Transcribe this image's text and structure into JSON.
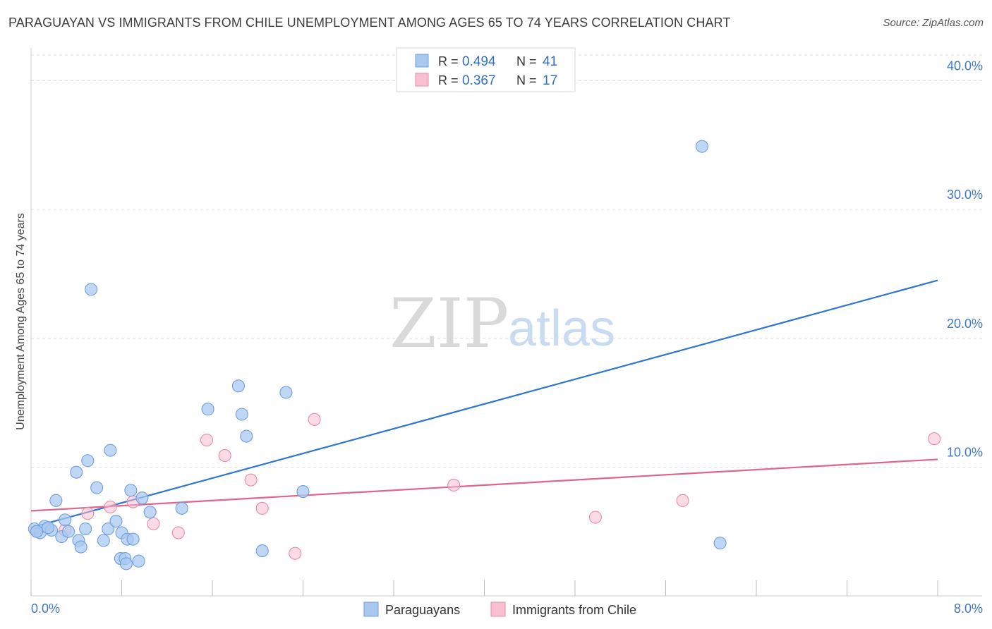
{
  "title": "PARAGUAYAN VS IMMIGRANTS FROM CHILE UNEMPLOYMENT AMONG AGES 65 TO 74 YEARS CORRELATION CHART",
  "source": "Source: ZipAtlas.com",
  "watermark": {
    "zip": "ZIP",
    "atlas": "atlas"
  },
  "colors": {
    "blue_fill": "#a9c8f0",
    "blue_stroke": "#6f9fdc",
    "blue_line": "#2f76d0",
    "pink_fill": "#f7c0d0",
    "pink_stroke": "#e98aa7",
    "pink_line": "#e0648e",
    "grid": "#dedede",
    "axis_text": "#3f78c8"
  },
  "legend_top": [
    {
      "r_label": "R =",
      "r_value": "0.494",
      "n_label": "N =",
      "n_value": "41"
    },
    {
      "r_label": "R =",
      "r_value": "0.367",
      "n_label": "N =",
      "n_value": "17"
    }
  ],
  "chart_data": {
    "type": "scatter",
    "title": "PARAGUAYAN VS IMMIGRANTS FROM CHILE UNEMPLOYMENT AMONG AGES 65 TO 74 YEARS CORRELATION CHART",
    "xlabel": "",
    "ylabel": "Unemployment Among Ages 65 to 74 years",
    "xlim": [
      0,
      8
    ],
    "ylim": [
      0,
      42
    ],
    "x_tick_labels": [
      "0.0%",
      "8.0%"
    ],
    "y_ticks": [
      10,
      20,
      30,
      40
    ],
    "y_tick_labels": [
      "10.0%",
      "20.0%",
      "30.0%",
      "40.0%"
    ],
    "grid": true,
    "legend_position": "bottom-center",
    "series": [
      {
        "name": "Paraguayans",
        "color": "#a9c8f0",
        "points": [
          [
            0.03,
            5.2
          ],
          [
            0.08,
            4.9
          ],
          [
            0.12,
            5.4
          ],
          [
            0.18,
            5.1
          ],
          [
            0.22,
            7.4
          ],
          [
            0.27,
            4.6
          ],
          [
            0.3,
            5.9
          ],
          [
            0.33,
            5.0
          ],
          [
            0.4,
            9.6
          ],
          [
            0.42,
            4.3
          ],
          [
            0.44,
            3.8
          ],
          [
            0.48,
            5.2
          ],
          [
            0.5,
            10.5
          ],
          [
            0.53,
            23.8
          ],
          [
            0.58,
            8.4
          ],
          [
            0.64,
            4.3
          ],
          [
            0.68,
            5.2
          ],
          [
            0.7,
            11.3
          ],
          [
            0.75,
            5.8
          ],
          [
            0.79,
            2.9
          ],
          [
            0.8,
            4.9
          ],
          [
            0.83,
            2.9
          ],
          [
            0.84,
            2.5
          ],
          [
            0.85,
            4.4
          ],
          [
            0.88,
            8.2
          ],
          [
            0.9,
            4.4
          ],
          [
            0.95,
            2.7
          ],
          [
            0.98,
            7.6
          ],
          [
            1.05,
            6.5
          ],
          [
            1.33,
            6.8
          ],
          [
            1.56,
            14.5
          ],
          [
            1.83,
            16.3
          ],
          [
            1.86,
            14.1
          ],
          [
            1.9,
            12.4
          ],
          [
            2.04,
            3.5
          ],
          [
            2.25,
            15.8
          ],
          [
            2.4,
            8.1
          ],
          [
            5.92,
            34.9
          ],
          [
            6.08,
            4.1
          ],
          [
            0.05,
            5.0
          ],
          [
            0.15,
            5.3
          ]
        ]
      },
      {
        "name": "Immigrants from Chile",
        "color": "#f7c0d0",
        "points": [
          [
            0.05,
            5.0
          ],
          [
            0.3,
            5.1
          ],
          [
            0.5,
            6.4
          ],
          [
            0.7,
            6.9
          ],
          [
            0.9,
            7.3
          ],
          [
            1.08,
            5.6
          ],
          [
            1.3,
            4.9
          ],
          [
            1.55,
            12.1
          ],
          [
            1.71,
            10.9
          ],
          [
            1.94,
            9.0
          ],
          [
            2.04,
            6.8
          ],
          [
            2.33,
            3.3
          ],
          [
            2.5,
            13.7
          ],
          [
            3.73,
            8.6
          ],
          [
            4.98,
            6.1
          ],
          [
            5.75,
            7.4
          ],
          [
            7.97,
            12.2
          ]
        ]
      }
    ],
    "trend_lines": [
      {
        "series": "Paraguayans",
        "x": [
          0.0,
          8.0
        ],
        "y": [
          5.3,
          24.5
        ]
      },
      {
        "series": "Immigrants from Chile",
        "x": [
          0.0,
          8.0
        ],
        "y": [
          6.6,
          10.6
        ]
      }
    ]
  }
}
